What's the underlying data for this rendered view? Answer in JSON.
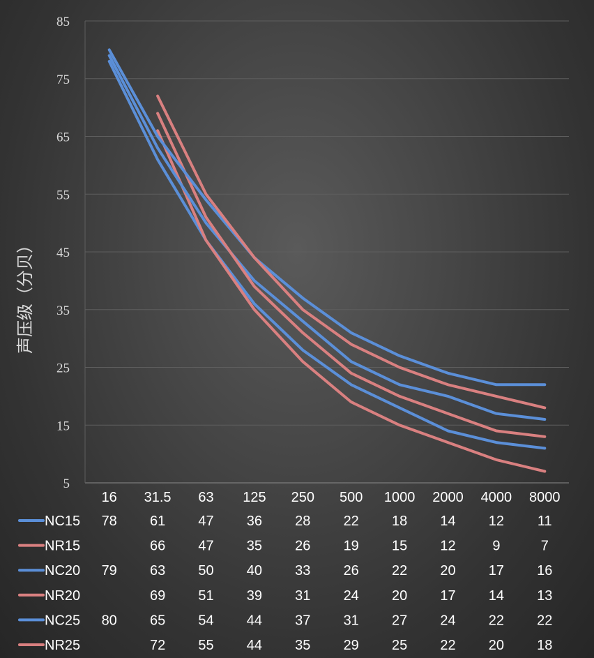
{
  "chart_data": {
    "type": "line",
    "ylabel": "声压级（分贝）",
    "categories": [
      "16",
      "31.5",
      "63",
      "125",
      "250",
      "500",
      "1000",
      "2000",
      "4000",
      "8000"
    ],
    "ylim": [
      5,
      85
    ],
    "yticks": [
      5,
      15,
      25,
      35,
      45,
      55,
      65,
      75,
      85
    ],
    "grid": true,
    "legend": "data-table",
    "series": [
      {
        "name": "NC15",
        "color": "#5b8fd8",
        "values": [
          78,
          61,
          47,
          36,
          28,
          22,
          18,
          14,
          12,
          11
        ]
      },
      {
        "name": "NR15",
        "color": "#d98080",
        "values": [
          null,
          66,
          47,
          35,
          26,
          19,
          15,
          12,
          9,
          7
        ]
      },
      {
        "name": "NC20",
        "color": "#5b8fd8",
        "values": [
          79,
          63,
          50,
          40,
          33,
          26,
          22,
          20,
          17,
          16
        ]
      },
      {
        "name": "NR20",
        "color": "#d98080",
        "values": [
          null,
          69,
          51,
          39,
          31,
          24,
          20,
          17,
          14,
          13
        ]
      },
      {
        "name": "NC25",
        "color": "#5b8fd8",
        "values": [
          80,
          65,
          54,
          44,
          37,
          31,
          27,
          24,
          22,
          22
        ]
      },
      {
        "name": "NR25",
        "color": "#d98080",
        "values": [
          null,
          72,
          55,
          44,
          35,
          29,
          25,
          22,
          20,
          18
        ]
      }
    ]
  }
}
